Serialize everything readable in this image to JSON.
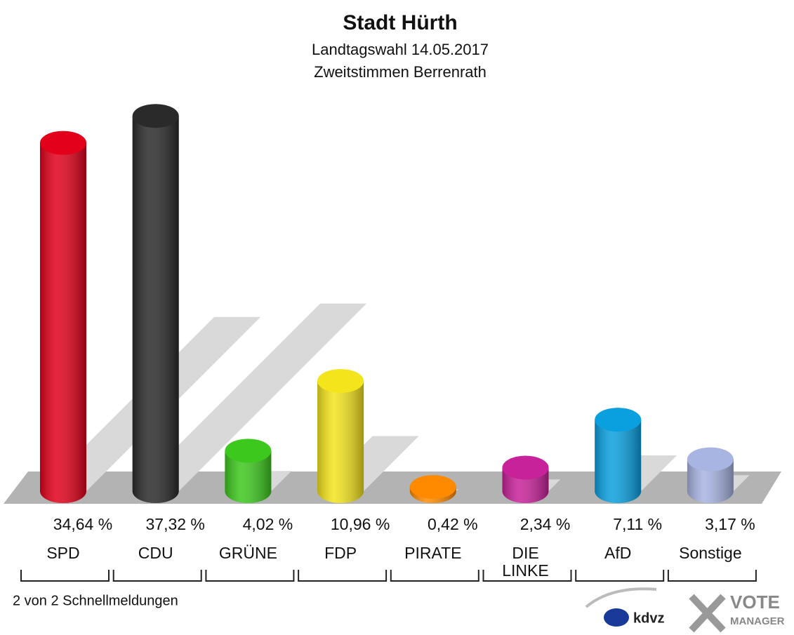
{
  "chart_data": {
    "type": "bar",
    "title": "Stadt Hürth",
    "subtitle": [
      "Landtagswahl 14.05.2017",
      "Zweitstimmen Berrenrath"
    ],
    "categories": [
      "SPD",
      "CDU",
      "GRÜNE",
      "FDP",
      "PIRATE",
      "DIE LINKE",
      "AfD",
      "Sonstige"
    ],
    "values": [
      34.64,
      37.32,
      4.02,
      10.96,
      0.42,
      2.34,
      7.11,
      3.17
    ],
    "value_labels": [
      "34,64 %",
      "37,32 %",
      "4,02 %",
      "10,96 %",
      "0,42 %",
      "2,34 %",
      "7,11 %",
      "3,17 %"
    ],
    "colors": [
      "#e2001a",
      "#2a2a2a",
      "#3dc81e",
      "#f4e41c",
      "#ff8a00",
      "#c8229a",
      "#0aa0e0",
      "#a8b4e2"
    ],
    "footnote": "2 von 2 Schnellmeldungen",
    "logo": [
      "kdvz",
      "VOTE",
      "MANAGER"
    ]
  }
}
